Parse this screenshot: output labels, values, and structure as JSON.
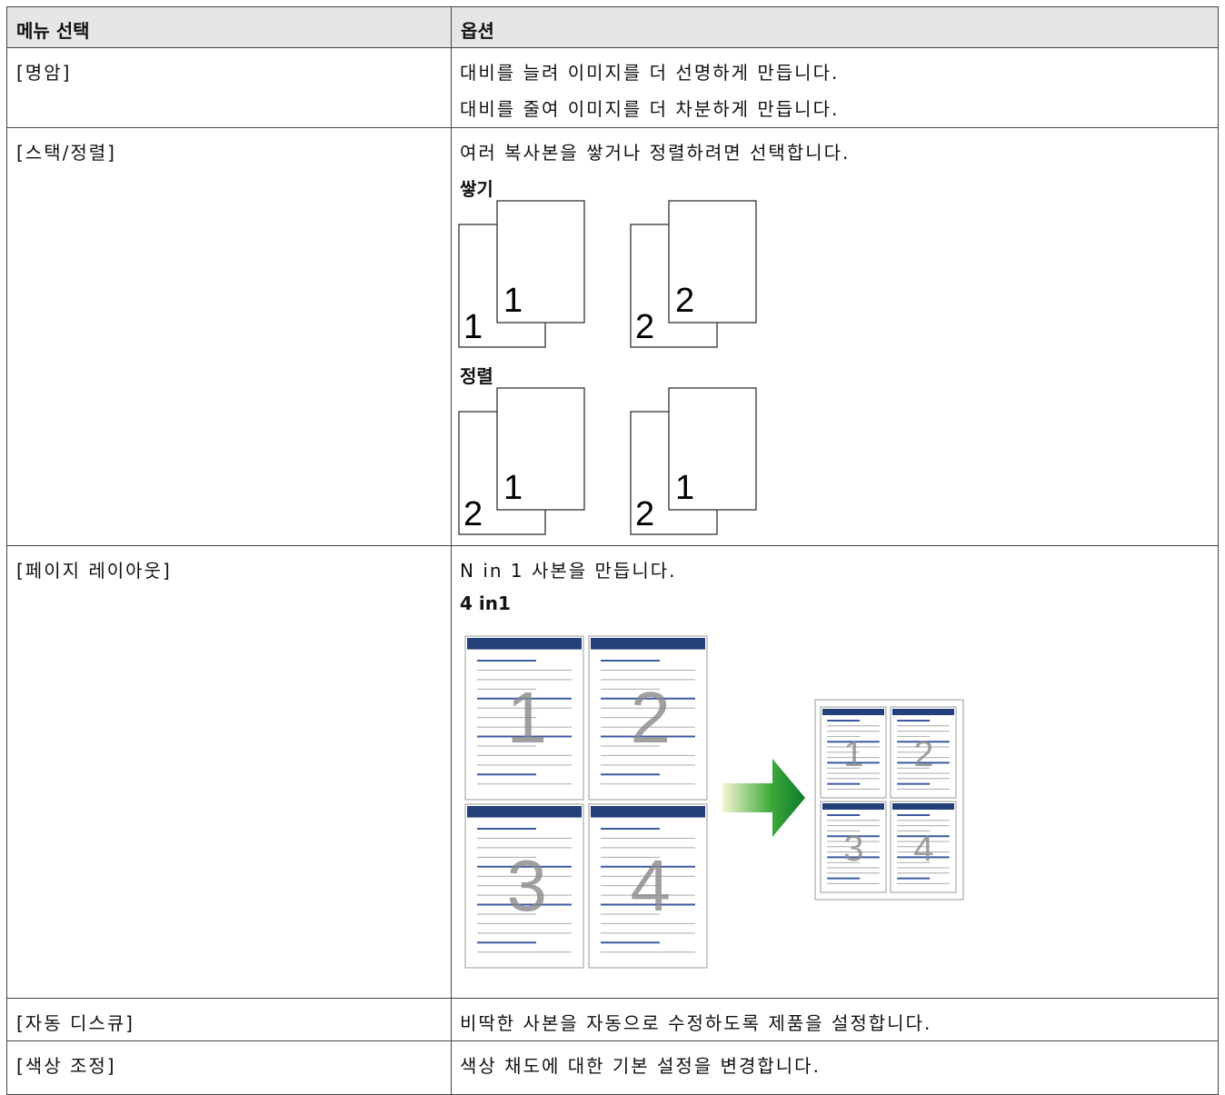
{
  "table": {
    "header": [
      "메뉴 선택",
      "옵션"
    ],
    "rows": [
      {
        "menu": "[명암]",
        "options": [
          "대비를 늘려 이미지를 더 선명하게 만듭니다.",
          "대비를 줄여 이미지를 더 차분하게 만듭니다."
        ]
      },
      {
        "menu": "[스택/정렬]",
        "options": [
          "여러 복사본을 쌓거나 정렬하려면 선택합니다."
        ],
        "stack": {
          "label": "쌓기",
          "pairs": [
            [
              "1",
              "1"
            ],
            [
              "2",
              "2"
            ]
          ]
        },
        "sort": {
          "label": "정렬",
          "pairs": [
            [
              "2",
              "1"
            ],
            [
              "2",
              "1"
            ]
          ]
        }
      },
      {
        "menu": "[페이지 레이아웃]",
        "options": [
          "N in 1 사본을 만듭니다."
        ],
        "subtitle": "4 in1",
        "pages": [
          "1",
          "2",
          "3",
          "4"
        ]
      },
      {
        "menu": "[자동 디스큐]",
        "options": [
          "비딱한 사본을 자동으로 수정하도록 제품을 설정합니다."
        ]
      },
      {
        "menu": "[색상 조정]",
        "options": [
          "색상 채도에 대한 기본 설정을 변경합니다."
        ]
      }
    ]
  }
}
